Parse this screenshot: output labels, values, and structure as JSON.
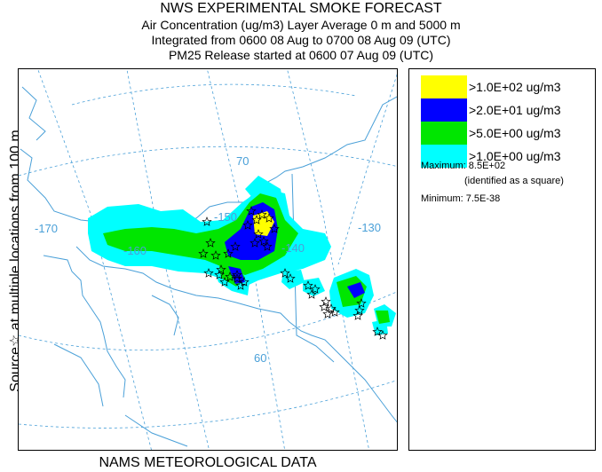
{
  "header": {
    "title": "NWS EXPERIMENTAL SMOKE FORECAST",
    "line2": "Air Concentration (ug/m3) Layer Average    0 m and  5000 m",
    "line3": "Integrated from 0600 08 Aug to 0700 08 Aug 09 (UTC)",
    "line4": "PM25 Release started at 0600 07 Aug 09 (UTC)"
  },
  "side_label": "Source☆ at multiple locations    from   100 m",
  "footer": "NAMS METEOROLOGICAL DATA",
  "map": {
    "longitude_labels": [
      "-170",
      "-160",
      "-150",
      "-140",
      "-130"
    ],
    "latitude_labels": [
      "70",
      "60"
    ]
  },
  "legend": {
    "items": [
      {
        "label": ">1.0E+02 ug/m3",
        "color": "#ffff00"
      },
      {
        "label": ">2.0E+01 ug/m3",
        "color": "#0000ff"
      },
      {
        "label": ">5.0E+00 ug/m3",
        "color": "#00e600"
      },
      {
        "label": ">1.0E+00 ug/m3",
        "color": "#00ffff"
      }
    ],
    "maximum": "Maximum: 8.5E+02",
    "maximum_note": "(identified as a square)",
    "minimum": "Minimum: 7.5E-38"
  },
  "colors": {
    "coastline": "#4aa0d8",
    "graticule": "#4aa0d8",
    "border": "#4aa0d8"
  }
}
